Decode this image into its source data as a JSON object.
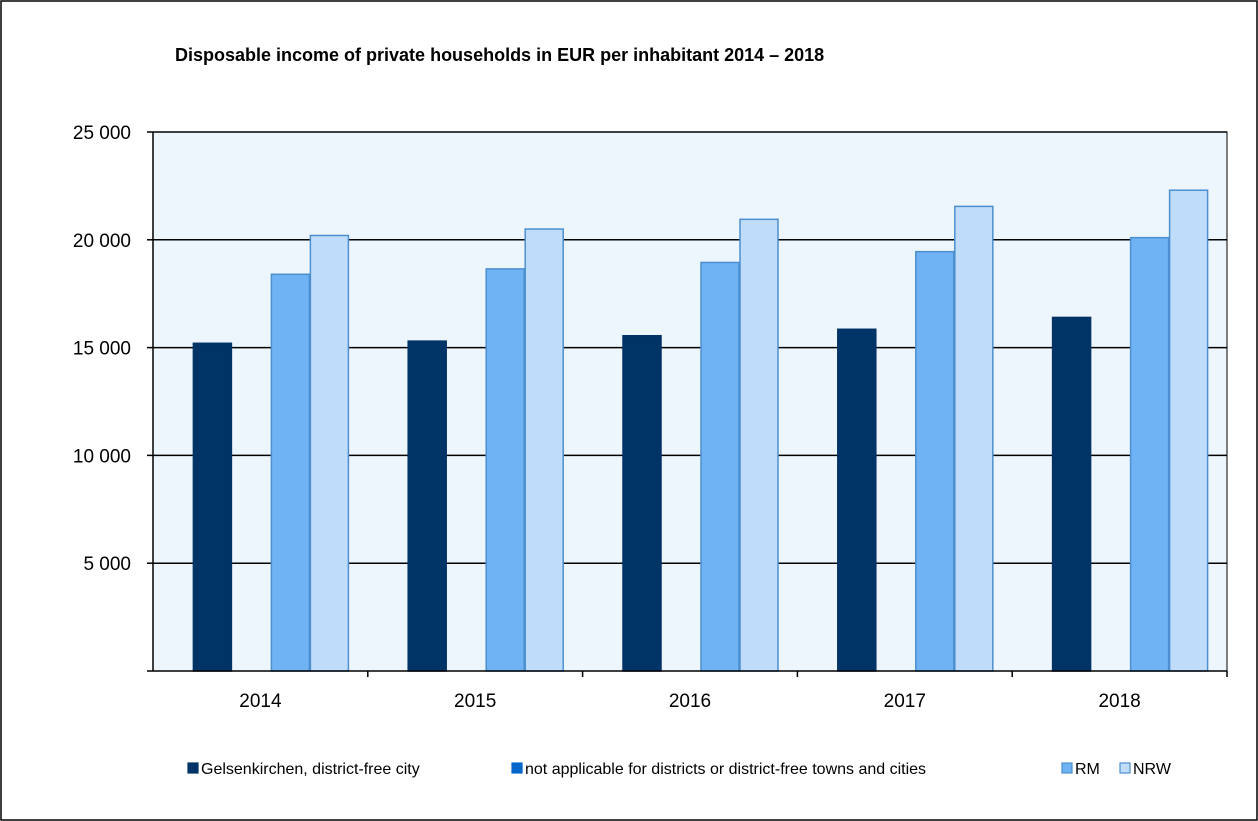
{
  "chart_data": {
    "type": "bar",
    "title": "Disposable income of private households in EUR per inhabitant 2014 – 2018",
    "categories": [
      "2014",
      "2015",
      "2016",
      "2017",
      "2018"
    ],
    "series": [
      {
        "name": "Gelsenkirchen, district-free city",
        "values": [
          15200,
          15300,
          15550,
          15850,
          16400
        ],
        "color": "#003366"
      },
      {
        "name": "not applicable for districts or district-free towns and cities",
        "values": [
          null,
          null,
          null,
          null,
          null
        ],
        "color": "#0066cc"
      },
      {
        "name": "RM",
        "values": [
          18400,
          18650,
          18950,
          19450,
          20100
        ],
        "color": "#6fb3f5"
      },
      {
        "name": "NRW",
        "values": [
          20200,
          20500,
          20950,
          21550,
          22300
        ],
        "color": "#bfddfa"
      }
    ],
    "ylim": [
      0,
      25000
    ],
    "yticks": [
      0,
      5000,
      10000,
      15000,
      20000,
      25000
    ],
    "ytick_labels": [
      "",
      "5 000",
      "10 000",
      "15 000",
      "20 000",
      "25 000"
    ],
    "grid": true,
    "legend_position": "bottom",
    "plot_background": "#eef6fd",
    "border_color": "#4d8fcf"
  }
}
